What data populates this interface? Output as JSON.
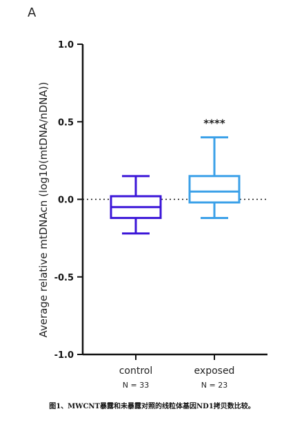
{
  "panel_label": "A",
  "caption": "图1、MWCNT暴露和未暴露对照的线粒体基因ND1拷贝数比较。",
  "chart_data": {
    "type": "box",
    "title": "",
    "xlabel": "",
    "ylabel": "Average relative mtDNAcn (log10(mtDNA/nDNA))",
    "ylim": [
      -1.0,
      1.0
    ],
    "yticks": [
      "1.0",
      "0.5",
      "0.0",
      "-0.5",
      "-1.0"
    ],
    "ytick_values": [
      1.0,
      0.5,
      0.0,
      -0.5,
      -1.0
    ],
    "reference_line": 0.0,
    "grid": false,
    "legend": "none",
    "categories": [
      "control",
      "exposed"
    ],
    "series": [
      {
        "category": "control",
        "n_label": "N = 33",
        "color": "#3b16d8",
        "whisker_low": -0.22,
        "q1": -0.12,
        "median": -0.05,
        "q3": 0.02,
        "whisker_high": 0.15,
        "significance": ""
      },
      {
        "category": "exposed",
        "n_label": "N = 23",
        "color": "#3aa0e8",
        "whisker_low": -0.12,
        "q1": -0.02,
        "median": 0.05,
        "q3": 0.15,
        "whisker_high": 0.4,
        "significance": "****"
      }
    ]
  }
}
